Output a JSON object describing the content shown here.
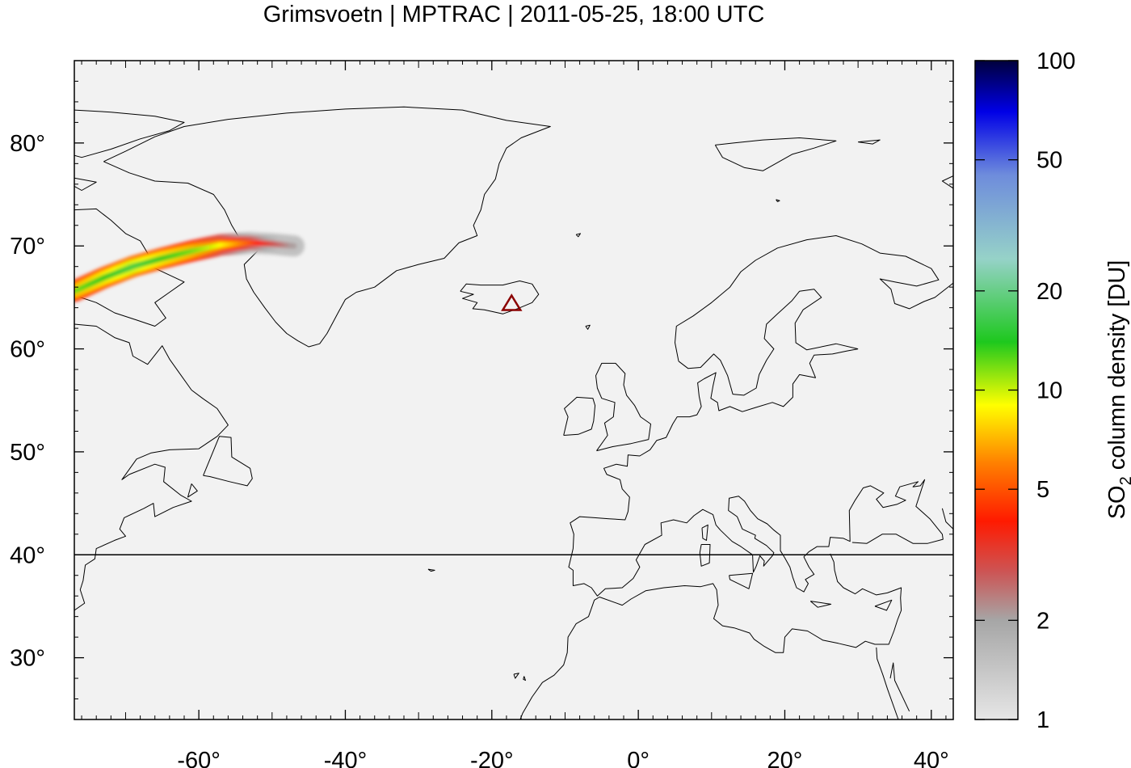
{
  "title": "Grimsvoetn | MPTRAC | 2011-05-25, 18:00 UTC",
  "map": {
    "lon_range": [
      -77,
      43
    ],
    "lat_range": [
      24,
      88
    ],
    "background_color": "#f2f2f2",
    "coastline_color": "#000000",
    "reference_latitude": 40,
    "x_ticks": [
      {
        "value": -60,
        "label": "-60°"
      },
      {
        "value": -40,
        "label": "-40°"
      },
      {
        "value": -20,
        "label": "-20°"
      },
      {
        "value": 0,
        "label": "0°"
      },
      {
        "value": 20,
        "label": "20°"
      },
      {
        "value": 40,
        "label": "40°"
      }
    ],
    "y_ticks": [
      {
        "value": 30,
        "label": "30°"
      },
      {
        "value": 40,
        "label": "40°"
      },
      {
        "value": 50,
        "label": "50°"
      },
      {
        "value": 60,
        "label": "60°"
      },
      {
        "value": 70,
        "label": "70°"
      },
      {
        "value": 80,
        "label": "80°"
      }
    ],
    "volcano": {
      "name": "Grimsvoetn",
      "lon": -17.3,
      "lat": 64.4,
      "marker": "triangle-outline-icon",
      "color": "#8b0000"
    }
  },
  "plume": {
    "description_note": "",
    "points": [
      {
        "lon": -77,
        "lat": 65.6,
        "du": 12
      },
      {
        "lon": -73,
        "lat": 66.9,
        "du": 14
      },
      {
        "lon": -69,
        "lat": 68.0,
        "du": 16
      },
      {
        "lon": -65,
        "lat": 68.8,
        "du": 14
      },
      {
        "lon": -61,
        "lat": 69.5,
        "du": 12
      },
      {
        "lon": -57,
        "lat": 70.1,
        "du": 9
      },
      {
        "lon": -53,
        "lat": 70.3,
        "du": 5
      },
      {
        "lon": -50,
        "lat": 70.2,
        "du": 3
      },
      {
        "lon": -47,
        "lat": 70.0,
        "du": 2
      }
    ]
  },
  "colorbar": {
    "label_main": "SO",
    "label_sub": "2",
    "label_rest": " column density [DU]",
    "scale": "log",
    "range": [
      1,
      100
    ],
    "ticks": [
      {
        "value": 1,
        "label": "1"
      },
      {
        "value": 2,
        "label": "2"
      },
      {
        "value": 5,
        "label": "5"
      },
      {
        "value": 10,
        "label": "10"
      },
      {
        "value": 20,
        "label": "20"
      },
      {
        "value": 50,
        "label": "50"
      },
      {
        "value": 100,
        "label": "100"
      }
    ],
    "stops": [
      {
        "value": 1,
        "color": "#e6e6e6"
      },
      {
        "value": 2,
        "color": "#a6a6a6"
      },
      {
        "value": 2.8,
        "color": "#cc5555"
      },
      {
        "value": 4,
        "color": "#ff1a00"
      },
      {
        "value": 6,
        "color": "#ff8000"
      },
      {
        "value": 9,
        "color": "#ffff00"
      },
      {
        "value": 14,
        "color": "#1ec81e"
      },
      {
        "value": 25,
        "color": "#96d2c8"
      },
      {
        "value": 45,
        "color": "#6e8cdc"
      },
      {
        "value": 70,
        "color": "#0000e6"
      },
      {
        "value": 100,
        "color": "#00003c"
      }
    ]
  }
}
